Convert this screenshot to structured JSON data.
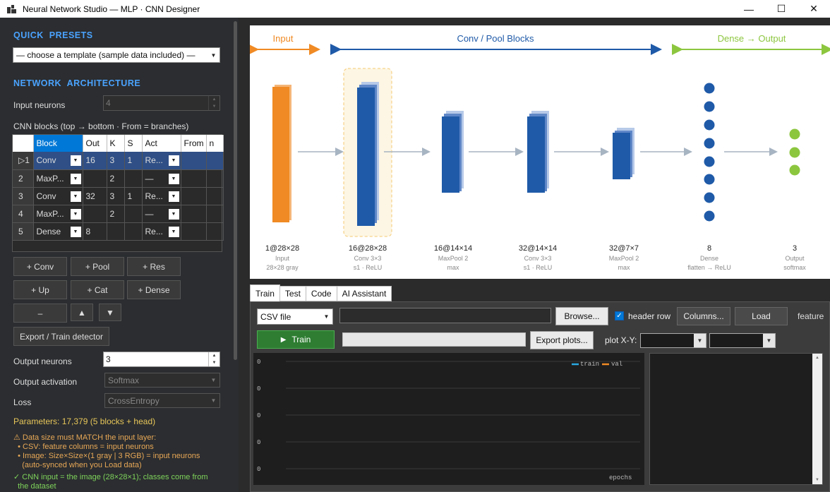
{
  "window": {
    "title": "Neural Network Studio — MLP · CNN Designer",
    "controls": [
      "minimize-icon",
      "maximize-icon",
      "close-icon"
    ]
  },
  "left": {
    "presets_title": "QUICK PRESETS",
    "preset_select": "— choose a template (sample data included) —",
    "arch_title": "NETWORK ARCHITECTURE",
    "input_neurons_label": "Input neurons",
    "input_neurons_value": "4",
    "cnn_blocks_label": "CNN blocks  (top → bottom · From = branches)",
    "grid": {
      "headers": [
        "Block",
        "Out",
        "K",
        "S",
        "Act",
        "From",
        "n"
      ],
      "rows": [
        {
          "num": "▷1",
          "block": "Conv",
          "out": "16",
          "k": "3",
          "s": "1",
          "act": "Re...",
          "from": "",
          "n": ""
        },
        {
          "num": "2",
          "block": "MaxP...",
          "out": "",
          "k": "2",
          "s": "",
          "act": "—",
          "from": "",
          "n": ""
        },
        {
          "num": "3",
          "block": "Conv",
          "out": "32",
          "k": "3",
          "s": "1",
          "act": "Re...",
          "from": "",
          "n": ""
        },
        {
          "num": "4",
          "block": "MaxP...",
          "out": "",
          "k": "2",
          "s": "",
          "act": "—",
          "from": "",
          "n": ""
        },
        {
          "num": "5",
          "block": "Dense",
          "out": "8",
          "k": "",
          "s": "",
          "act": "Re...",
          "from": "",
          "n": ""
        }
      ]
    },
    "buttons": {
      "add_conv": "+ Conv",
      "add_pool": "+ Pool",
      "add_res": "+ Res",
      "add_up": "+ Up",
      "add_cat": "+ Cat",
      "add_dense": "+ Dense",
      "remove": "–",
      "move_up": "▲",
      "move_down": "▼",
      "export_train": "Export / Train detector"
    },
    "output_neurons_label": "Output neurons",
    "output_neurons_value": "3",
    "output_activation_label": "Output activation",
    "output_activation_value": "Softmax",
    "loss_label": "Loss",
    "loss_value": "CrossEntropy",
    "params_text": "Parameters: 17,379   (5 blocks + head)",
    "warn_lines": [
      "⚠ Data size must MATCH the input layer:",
      "  • CSV: feature columns = input neurons",
      "  • Image: Size×Size×(1 gray | 3 RGB) = input neurons",
      "    (auto-synced when you Load data)"
    ],
    "ok_lines": [
      "✓ CNN input = the image (28×28×1); classes come from",
      "  the dataset"
    ],
    "colors": {
      "accent": "#4aa3ff",
      "params": "#e8c65a",
      "warn": "#e8a857",
      "ok": "#7fd35b"
    }
  },
  "diagram": {
    "sections": {
      "input": "Input",
      "conv": "Conv / Pool Blocks",
      "dense": "Dense → Output"
    },
    "colors": {
      "input": "#f08a24",
      "conv": "#1f5aa8",
      "dense": "#8cc63f"
    },
    "layers": [
      {
        "shape": "1@28×28",
        "name": "Input",
        "detail": "28×28 gray"
      },
      {
        "shape": "16@28×28",
        "name": "Conv 3×3",
        "detail": "s1 · ReLU"
      },
      {
        "shape": "16@14×14",
        "name": "MaxPool 2",
        "detail": "max"
      },
      {
        "shape": "32@14×14",
        "name": "Conv 3×3",
        "detail": "s1 · ReLU"
      },
      {
        "shape": "32@7×7",
        "name": "MaxPool 2",
        "detail": "max"
      },
      {
        "shape": "8",
        "name": "Dense",
        "detail": "flatten → ReLU"
      },
      {
        "shape": "3",
        "name": "Output",
        "detail": "softmax"
      }
    ]
  },
  "tabs": [
    "Train",
    "Test",
    "Code",
    "AI Assistant"
  ],
  "train": {
    "source_select": "CSV file",
    "browse": "Browse...",
    "header_row": "header row",
    "columns": "Columns...",
    "load": "Load",
    "feature": "feature",
    "train_btn": "Train",
    "export_plots": "Export plots...",
    "plot_xy_label": "plot X-Y:",
    "plot": {
      "legend": [
        "train",
        "val"
      ],
      "y_ticks": [
        "0",
        "0",
        "0",
        "0",
        "0"
      ],
      "xlabel": "epochs"
    }
  }
}
